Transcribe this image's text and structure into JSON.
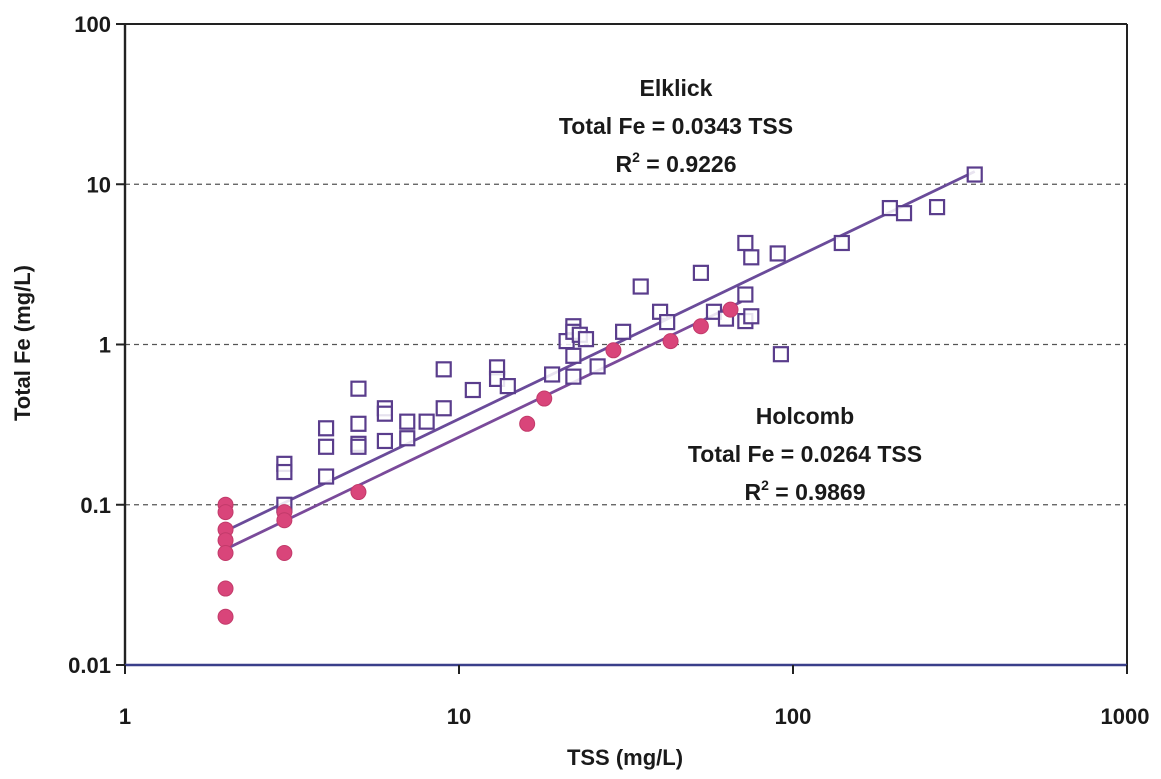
{
  "chart_data": {
    "type": "scatter",
    "title": "",
    "xlabel": "TSS (mg/L)",
    "ylabel": "Total Fe (mg/L)",
    "xscale": "log",
    "yscale": "log",
    "xlim": [
      1,
      1000
    ],
    "ylim": [
      0.01,
      100
    ],
    "x_ticks": [
      1,
      10,
      100,
      1000
    ],
    "x_tick_labels": [
      "1",
      "10",
      "100",
      "1000"
    ],
    "y_ticks": [
      0.01,
      0.1,
      1,
      10,
      100
    ],
    "y_tick_labels": [
      "0.01",
      "0.1",
      "1",
      "10",
      "100"
    ],
    "grid": "horizontal dashed at decades",
    "legend": "none",
    "colors": {
      "elklick": "#5a3d8c",
      "elklick_trend": "#6a4b9a",
      "holcomb": "#d9457a",
      "holcomb_trend": "#7a4a9a",
      "axis": "#222222",
      "grid": "#555555"
    },
    "series": [
      {
        "name": "Elklick",
        "marker": "hollow-square",
        "trendline": {
          "slope": 0.0343,
          "x_range": [
            2,
            350
          ]
        },
        "points": [
          [
            3,
            0.18
          ],
          [
            3,
            0.16
          ],
          [
            3,
            0.1
          ],
          [
            4,
            0.3
          ],
          [
            4,
            0.23
          ],
          [
            4,
            0.15
          ],
          [
            5,
            0.53
          ],
          [
            5,
            0.32
          ],
          [
            5,
            0.24
          ],
          [
            5,
            0.23
          ],
          [
            6,
            0.4
          ],
          [
            6,
            0.37
          ],
          [
            6,
            0.25
          ],
          [
            7,
            0.33
          ],
          [
            7,
            0.26
          ],
          [
            8,
            0.33
          ],
          [
            9,
            0.7
          ],
          [
            9,
            0.4
          ],
          [
            11,
            0.52
          ],
          [
            13,
            0.72
          ],
          [
            13,
            0.61
          ],
          [
            14,
            0.55
          ],
          [
            19,
            0.65
          ],
          [
            21,
            1.05
          ],
          [
            22,
            1.3
          ],
          [
            22,
            1.2
          ],
          [
            22,
            0.85
          ],
          [
            22,
            0.63
          ],
          [
            23,
            1.15
          ],
          [
            24,
            1.08
          ],
          [
            26,
            0.73
          ],
          [
            31,
            1.2
          ],
          [
            35,
            2.3
          ],
          [
            40,
            1.6
          ],
          [
            42,
            1.38
          ],
          [
            53,
            2.8
          ],
          [
            58,
            1.6
          ],
          [
            63,
            1.45
          ],
          [
            72,
            4.3
          ],
          [
            72,
            2.05
          ],
          [
            72,
            1.4
          ],
          [
            75,
            3.5
          ],
          [
            75,
            1.5
          ],
          [
            90,
            3.7
          ],
          [
            92,
            0.87
          ],
          [
            140,
            4.3
          ],
          [
            195,
            7.1
          ],
          [
            215,
            6.6
          ],
          [
            270,
            7.2
          ],
          [
            350,
            11.5
          ]
        ]
      },
      {
        "name": "Holcomb",
        "marker": "filled-circle",
        "trendline": {
          "slope": 0.0264,
          "x_range": [
            2,
            70
          ]
        },
        "points": [
          [
            2,
            0.1
          ],
          [
            2,
            0.09
          ],
          [
            2,
            0.07
          ],
          [
            2,
            0.06
          ],
          [
            2,
            0.05
          ],
          [
            2,
            0.03
          ],
          [
            2,
            0.02
          ],
          [
            3,
            0.09
          ],
          [
            3,
            0.08
          ],
          [
            3,
            0.05
          ],
          [
            5,
            0.12
          ],
          [
            16,
            0.32
          ],
          [
            18,
            0.46
          ],
          [
            29,
            0.92
          ],
          [
            43,
            1.05
          ],
          [
            53,
            1.3
          ],
          [
            65,
            1.65
          ]
        ]
      }
    ],
    "annotations": [
      {
        "series": "Elklick",
        "name": "Elklick",
        "equation": "Total Fe = 0.0343 TSS",
        "r2_label": "R",
        "r2_sup": "2",
        "r2_value": " = 0.9226"
      },
      {
        "series": "Holcomb",
        "name": "Holcomb",
        "equation": "Total Fe = 0.0264 TSS",
        "r2_label": "R",
        "r2_sup": "2",
        "r2_value": " = 0.9869"
      }
    ]
  }
}
